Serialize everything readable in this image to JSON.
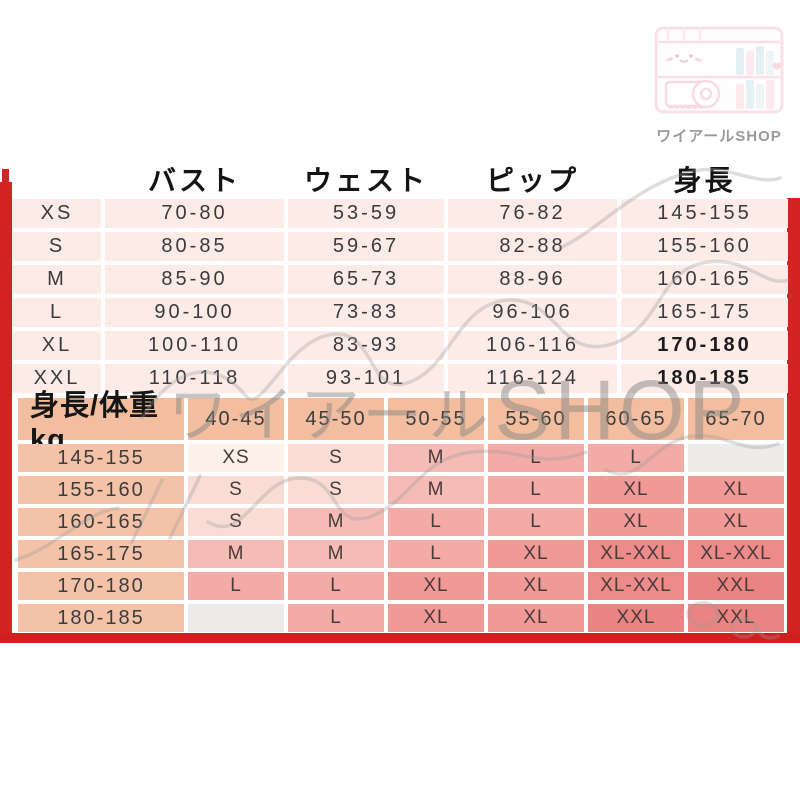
{
  "logo": {
    "caption": "ワイアールSHOP"
  },
  "watermark": {
    "kana": "ワイアール",
    "latin": "SHOP"
  },
  "size_table": {
    "corner": "",
    "columns": [
      "バスト",
      "ウェスト",
      "ピップ",
      "身長"
    ],
    "rows": [
      {
        "size": "XS",
        "values": [
          "70-80",
          "53-59",
          "76-82",
          "145-155"
        ],
        "bold_last": false
      },
      {
        "size": "S",
        "values": [
          "80-85",
          "59-67",
          "82-88",
          "155-160"
        ],
        "bold_last": false
      },
      {
        "size": "M",
        "values": [
          "85-90",
          "65-73",
          "88-96",
          "160-165"
        ],
        "bold_last": false
      },
      {
        "size": "L",
        "values": [
          "90-100",
          "73-83",
          "96-106",
          "165-175"
        ],
        "bold_last": false
      },
      {
        "size": "XL",
        "values": [
          "100-110",
          "83-93",
          "106-116",
          "170-180"
        ],
        "bold_last": true
      },
      {
        "size": "XXL",
        "values": [
          "110-118",
          "93-101",
          "116-124",
          "180-185"
        ],
        "bold_last": true
      }
    ]
  },
  "fit_table": {
    "corner_label": "身長/体重kg",
    "weight_columns": [
      "40-45",
      "45-50",
      "50-55",
      "55-60",
      "60-65",
      "65-70"
    ],
    "rows": [
      {
        "height": "145-155",
        "cells": [
          "XS",
          "S",
          "M",
          "L",
          "L",
          ""
        ]
      },
      {
        "height": "155-160",
        "cells": [
          "S",
          "S",
          "M",
          "L",
          "XL",
          "XL"
        ]
      },
      {
        "height": "160-165",
        "cells": [
          "S",
          "M",
          "L",
          "L",
          "XL",
          "XL"
        ]
      },
      {
        "height": "165-175",
        "cells": [
          "M",
          "M",
          "L",
          "XL",
          "XL-XXL",
          "XL-XXL"
        ]
      },
      {
        "height": "170-180",
        "cells": [
          "L",
          "L",
          "XL",
          "XL",
          "XL-XXL",
          "XXL"
        ]
      },
      {
        "height": "180-185",
        "cells": [
          "",
          "L",
          "XL",
          "XL",
          "XXL",
          "XXL"
        ]
      }
    ]
  },
  "colors": {
    "frame_red": "#d32424",
    "row_pink": "#fcebe7",
    "header_peach": "#f3bd9f",
    "cell_colors": {
      "XS": "#fdf1ea",
      "S": "#f9ddd4",
      "M": "#f4bcb5",
      "L": "#f2aba6",
      "XL": "#ef9a96",
      "XL-XXL": "#ec8b89",
      "XXL": "#ea8482",
      "empty": "#eeecea"
    }
  }
}
